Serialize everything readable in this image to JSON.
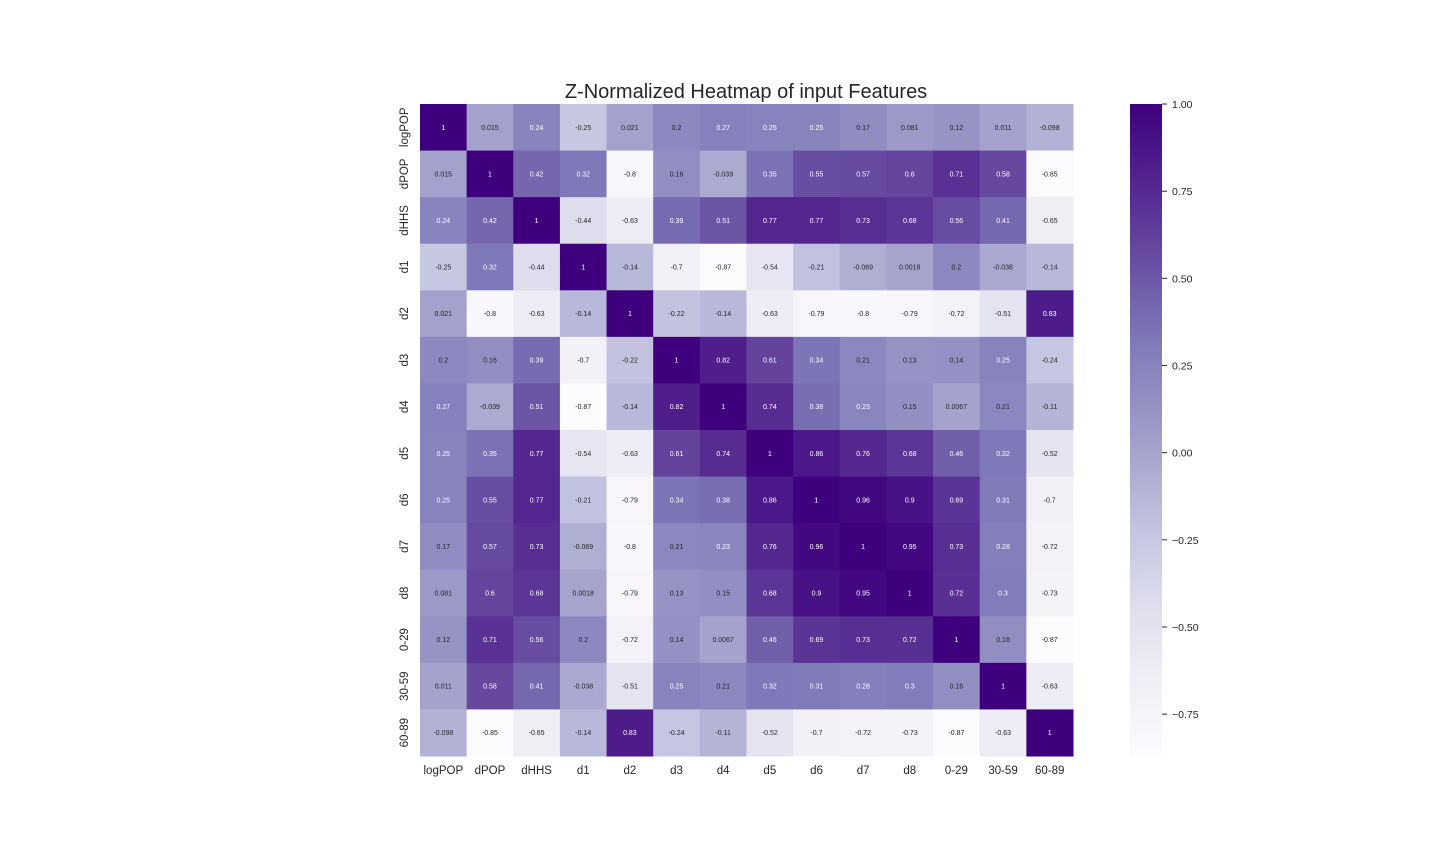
{
  "chart_data": {
    "type": "heatmap",
    "title": "Z-Normalized Heatmap of input Features",
    "xlabel": "",
    "ylabel": "",
    "labels": [
      "logPOP",
      "dPOP",
      "dHHS",
      "d1",
      "d2",
      "d3",
      "d4",
      "d5",
      "d6",
      "d7",
      "d8",
      "0-29",
      "30-59",
      "60-89"
    ],
    "values": [
      [
        "1",
        "0.015",
        "0.24",
        "-0.25",
        "0.021",
        "0.2",
        "0.27",
        "0.25",
        "0.25",
        "0.17",
        "0.081",
        "0.12",
        "0.011",
        "-0.098"
      ],
      [
        "0.015",
        "1",
        "0.42",
        "0.32",
        "-0.8",
        "0.16",
        "-0.039",
        "0.35",
        "0.55",
        "0.57",
        "0.6",
        "0.71",
        "0.58",
        "-0.85"
      ],
      [
        "0.24",
        "0.42",
        "1",
        "-0.44",
        "-0.63",
        "0.39",
        "0.51",
        "0.77",
        "0.77",
        "0.73",
        "0.68",
        "0.56",
        "0.41",
        "-0.65"
      ],
      [
        "-0.25",
        "0.32",
        "-0.44",
        "1",
        "-0.14",
        "-0.7",
        "-0.87",
        "-0.54",
        "-0.21",
        "-0.069",
        "0.0018",
        "0.2",
        "-0.038",
        "-0.14"
      ],
      [
        "0.021",
        "-0.8",
        "-0.63",
        "-0.14",
        "1",
        "-0.22",
        "-0.14",
        "-0.63",
        "-0.79",
        "-0.8",
        "-0.79",
        "-0.72",
        "-0.51",
        "0.83"
      ],
      [
        "0.2",
        "0.16",
        "0.39",
        "-0.7",
        "-0.22",
        "1",
        "0.82",
        "0.61",
        "0.34",
        "0.21",
        "0.13",
        "0.14",
        "0.25",
        "-0.24"
      ],
      [
        "0.27",
        "-0.039",
        "0.51",
        "-0.87",
        "-0.14",
        "0.82",
        "1",
        "0.74",
        "0.38",
        "0.23",
        "0.15",
        "0.0067",
        "0.21",
        "-0.11"
      ],
      [
        "0.25",
        "0.35",
        "0.77",
        "-0.54",
        "-0.63",
        "0.61",
        "0.74",
        "1",
        "0.86",
        "0.76",
        "0.68",
        "0.46",
        "0.32",
        "-0.52"
      ],
      [
        "0.25",
        "0.55",
        "0.77",
        "-0.21",
        "-0.79",
        "0.34",
        "0.38",
        "0.86",
        "1",
        "0.96",
        "0.9",
        "0.69",
        "0.31",
        "-0.7"
      ],
      [
        "0.17",
        "0.57",
        "0.73",
        "-0.069",
        "-0.8",
        "0.21",
        "0.23",
        "0.76",
        "0.96",
        "1",
        "0.95",
        "0.73",
        "0.28",
        "-0.72"
      ],
      [
        "0.081",
        "0.6",
        "0.68",
        "0.0018",
        "-0.79",
        "0.13",
        "0.15",
        "0.68",
        "0.9",
        "0.95",
        "1",
        "0.72",
        "0.3",
        "-0.73"
      ],
      [
        "0.12",
        "0.71",
        "0.56",
        "0.2",
        "-0.72",
        "0.14",
        "0.0067",
        "0.46",
        "0.69",
        "0.73",
        "0.72",
        "1",
        "0.16",
        "-0.87"
      ],
      [
        "0.011",
        "0.58",
        "0.41",
        "-0.038",
        "-0.51",
        "0.25",
        "0.21",
        "0.32",
        "0.31",
        "0.28",
        "0.3",
        "0.16",
        "1",
        "-0.63"
      ],
      [
        "-0.098",
        "-0.85",
        "-0.65",
        "-0.14",
        "0.83",
        "-0.24",
        "-0.11",
        "-0.52",
        "-0.7",
        "-0.72",
        "-0.73",
        "-0.87",
        "-0.63",
        "1"
      ]
    ],
    "colormap": "Purples",
    "vmin": -0.87,
    "vmax": 1.0,
    "colorbar_ticks": [
      "1.00",
      "0.75",
      "0.50",
      "0.25",
      "0.00",
      "−0.25",
      "−0.50",
      "−0.75"
    ],
    "grid": false
  }
}
